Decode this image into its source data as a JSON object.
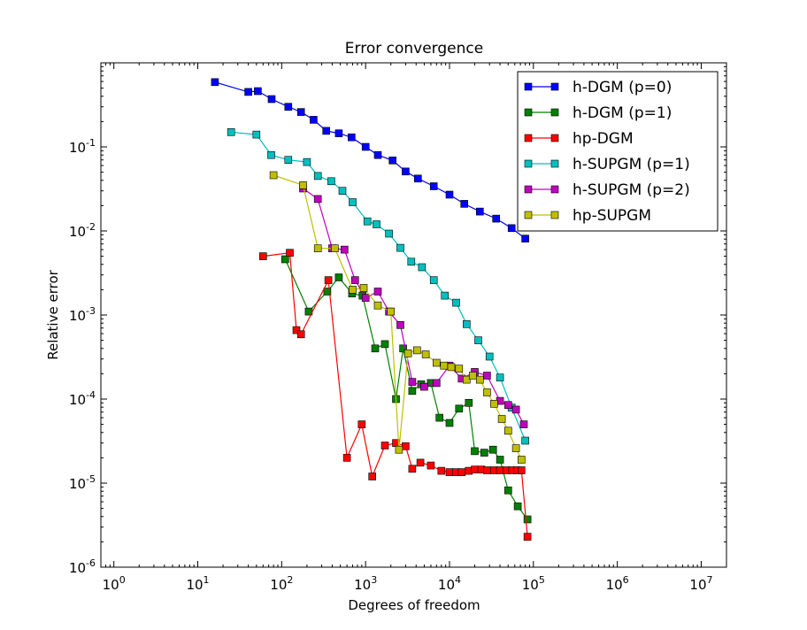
{
  "chart_data": {
    "type": "line",
    "title": "Error convergence",
    "xlabel": "Degrees of freedom",
    "ylabel": "Relative error",
    "xscale": "log",
    "yscale": "log",
    "xlim": [
      0.7,
      20000000
    ],
    "ylim": [
      1e-06,
      1
    ],
    "grid": false,
    "legend_position": "top-right",
    "xticks": [
      {
        "base": "10",
        "exp": "0",
        "value": 1
      },
      {
        "base": "10",
        "exp": "1",
        "value": 10
      },
      {
        "base": "10",
        "exp": "2",
        "value": 100
      },
      {
        "base": "10",
        "exp": "3",
        "value": 1000
      },
      {
        "base": "10",
        "exp": "4",
        "value": 10000
      },
      {
        "base": "10",
        "exp": "5",
        "value": 100000
      },
      {
        "base": "10",
        "exp": "6",
        "value": 1000000
      },
      {
        "base": "10",
        "exp": "7",
        "value": 10000000
      }
    ],
    "yticks": [
      {
        "base": "10",
        "exp": "-6",
        "value": 1e-06
      },
      {
        "base": "10",
        "exp": "-5",
        "value": 1e-05
      },
      {
        "base": "10",
        "exp": "-4",
        "value": 0.0001
      },
      {
        "base": "10",
        "exp": "-3",
        "value": 0.001
      },
      {
        "base": "10",
        "exp": "-2",
        "value": 0.01
      },
      {
        "base": "10",
        "exp": "-1",
        "value": 0.1
      }
    ],
    "series": [
      {
        "name": "h-DGM (p=0)",
        "color": "#0000ff",
        "x": [
          16,
          40,
          52,
          76,
          120,
          170,
          240,
          340,
          480,
          680,
          1000,
          1400,
          2100,
          3000,
          4200,
          6500,
          10000,
          15000,
          23000,
          36000,
          55000,
          80000
        ],
        "y": [
          0.59,
          0.45,
          0.46,
          0.37,
          0.3,
          0.26,
          0.21,
          0.155,
          0.145,
          0.13,
          0.1,
          0.08,
          0.069,
          0.051,
          0.042,
          0.034,
          0.027,
          0.021,
          0.017,
          0.014,
          0.0108,
          0.0081
        ]
      },
      {
        "name": "h-DGM (p=1)",
        "color": "#008000",
        "x": [
          110,
          210,
          350,
          480,
          690,
          920,
          1300,
          1700,
          2300,
          2800,
          3600,
          4600,
          6000,
          7600,
          10000,
          13000,
          17000,
          20000,
          26000,
          33000,
          40000,
          50000,
          65000,
          85000
        ],
        "y": [
          0.0046,
          0.0011,
          0.0019,
          0.0028,
          0.0018,
          0.0017,
          0.0004,
          0.00045,
          0.0001,
          0.0004,
          0.000125,
          0.00015,
          0.000155,
          6e-05,
          5.2e-05,
          7.7e-05,
          9e-05,
          2.4e-05,
          2.3e-05,
          2.5e-05,
          1.9e-05,
          8.2e-06,
          5.3e-06,
          3.7e-06
        ]
      },
      {
        "name": "hp-DGM",
        "color": "#ff0000",
        "x": [
          60,
          125,
          150,
          170,
          360,
          600,
          900,
          1200,
          1700,
          2300,
          3000,
          3600,
          4500,
          6000,
          8000,
          10000,
          12000,
          14000,
          17000,
          20000,
          24000,
          28000,
          34000,
          40000,
          48000,
          56000,
          64000,
          72000,
          85000
        ],
        "y": [
          0.005,
          0.0055,
          0.00066,
          0.00059,
          0.0026,
          2e-05,
          5e-05,
          1.2e-05,
          2.8e-05,
          3e-05,
          2.75e-05,
          1.48e-05,
          1.75e-05,
          1.62e-05,
          1.4e-05,
          1.35e-05,
          1.35e-05,
          1.35e-05,
          1.4e-05,
          1.45e-05,
          1.45e-05,
          1.42e-05,
          1.42e-05,
          1.42e-05,
          1.42e-05,
          1.42e-05,
          1.42e-05,
          1.42e-05,
          2.3e-06
        ]
      },
      {
        "name": "h-SUPGM (p=1)",
        "color": "#00bfbf",
        "x": [
          25,
          50,
          75,
          120,
          200,
          270,
          390,
          530,
          700,
          1050,
          1350,
          1900,
          2600,
          3500,
          4700,
          6500,
          8800,
          12000,
          16000,
          22000,
          30000,
          40000,
          55000,
          80000
        ],
        "y": [
          0.15,
          0.14,
          0.08,
          0.07,
          0.066,
          0.045,
          0.039,
          0.03,
          0.022,
          0.013,
          0.012,
          0.0093,
          0.0063,
          0.0043,
          0.0037,
          0.0026,
          0.0017,
          0.0014,
          0.00078,
          0.0005,
          0.00032,
          0.00018,
          7.9e-05,
          3.2e-05
        ]
      },
      {
        "name": "h-SUPGM (p=2)",
        "color": "#bf00bf",
        "x": [
          180,
          270,
          400,
          560,
          750,
          1000,
          1400,
          1900,
          2600,
          3600,
          5000,
          7000,
          10000,
          14000,
          20000,
          28000,
          40000,
          50000,
          62000,
          77000
        ],
        "y": [
          0.032,
          0.024,
          0.0062,
          0.006,
          0.0026,
          0.0016,
          0.0019,
          0.0011,
          0.00076,
          0.00016,
          0.00014,
          0.000155,
          0.00025,
          0.000175,
          0.00021,
          0.00019,
          9.5e-05,
          8.5e-05,
          7.5e-05,
          5e-05
        ]
      },
      {
        "name": "hp-SUPGM",
        "color": "#bfbf00",
        "x": [
          80,
          180,
          270,
          430,
          700,
          950,
          1400,
          2000,
          2500,
          3200,
          4100,
          5200,
          7000,
          8600,
          10500,
          13000,
          16000,
          19000,
          23000,
          28000,
          34000,
          42000,
          50000,
          62000,
          72000
        ],
        "y": [
          0.046,
          0.035,
          0.0062,
          0.0062,
          0.002,
          0.0021,
          0.0013,
          0.0011,
          2.5e-05,
          0.00035,
          0.00038,
          0.00034,
          0.00027,
          0.00025,
          0.00024,
          0.00023,
          0.00017,
          0.00019,
          0.00017,
          0.00012,
          8.8e-05,
          5.8e-05,
          4.2e-05,
          2.6e-05,
          1.9e-05
        ]
      }
    ]
  }
}
